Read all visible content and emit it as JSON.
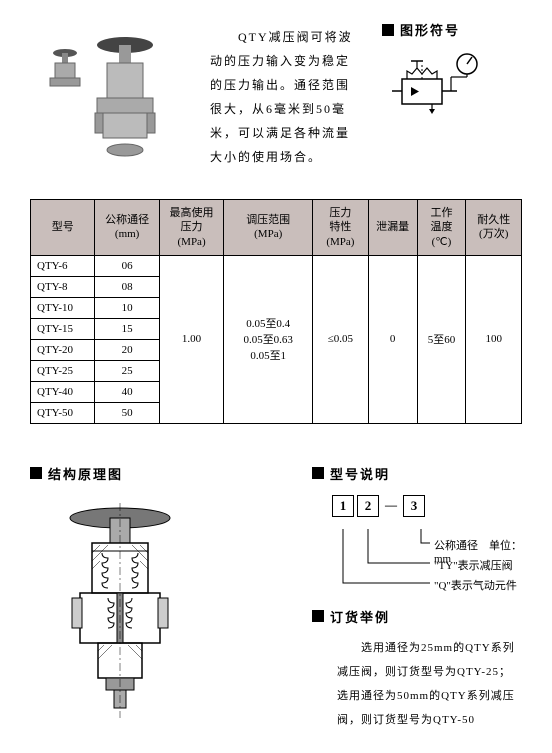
{
  "description": "　　QTY减压阀可将波动的压力输入变为稳定的压力输出。通径范围很大，从6毫米到50毫米，可以满足各种流量大小的使用场合。",
  "sections": {
    "symbol": "图形符号",
    "structure": "结构原理图",
    "model": "型号说明",
    "order": "订货举例"
  },
  "table": {
    "headers": [
      "型号",
      "公称通径\n(mm)",
      "最高使用\n压力\n(MPa)",
      "调压范围\n(MPa)",
      "压力\n特性\n(MPa)",
      "泄漏量",
      "工作\n温度\n(℃)",
      "耐久性\n(万次)"
    ],
    "models": [
      "QTY-6",
      "QTY-8",
      "QTY-10",
      "QTY-15",
      "QTY-20",
      "QTY-25",
      "QTY-40",
      "QTY-50"
    ],
    "diameters": [
      "06",
      "08",
      "10",
      "15",
      "20",
      "25",
      "40",
      "50"
    ],
    "maxPressure": "1.00",
    "adjustRange": "0.05至0.4\n0.05至0.63\n0.05至1",
    "pressureChar": "≤0.05",
    "leakage": "0",
    "temp": "5至60",
    "durability": "100"
  },
  "modelExplanation": {
    "boxes": [
      "1",
      "2",
      "3"
    ],
    "line1": "公称通径　单位：mm",
    "line2": "\"TY\"表示减压阀",
    "line3": "\"Q\"表示气动元件"
  },
  "orderExample": "　　选用通径为25mm的QTY系列减压阀，则订货型号为QTY-25；选用通径为50mm的QTY系列减压阀，则订货型号为QTY-50"
}
